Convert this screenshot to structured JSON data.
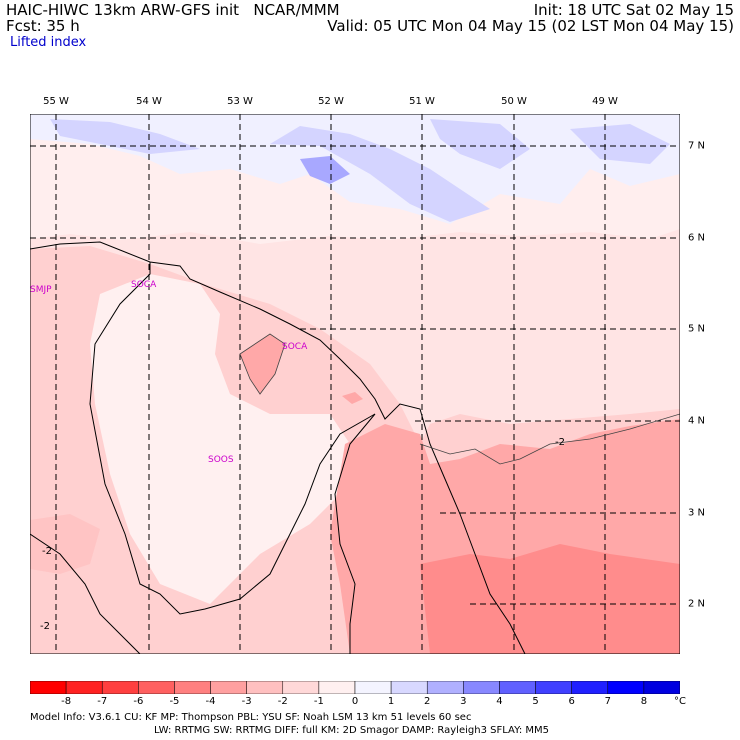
{
  "header": {
    "model": "HAIC-HIWC 13km ARW-GFS init",
    "source": "NCAR/MMM",
    "forecast": "Fcst:    35 h",
    "field": "Lifted index",
    "init": "Init: 18 UTC Sat 02 May 15",
    "valid": "Valid: 05 UTC Mon 04 May 15 (02 LST Mon 04 May 15)"
  },
  "longitude_labels": [
    "55 W",
    "54 W",
    "53 W",
    "52 W",
    "51 W",
    "50 W",
    "49 W"
  ],
  "latitude_labels": [
    "7 N",
    "6 N",
    "5 N",
    "4 N",
    "3 N",
    "2 N"
  ],
  "stations": [
    "SMJP",
    "SOCA",
    "SOCA",
    "SOOS"
  ],
  "contour_labels": [
    "-2",
    "-2",
    "-2"
  ],
  "colorbar": {
    "ticks": [
      "-8",
      "-7",
      "-6",
      "-5",
      "-4",
      "-3",
      "-2",
      "-1",
      "0",
      "1",
      "2",
      "3",
      "4",
      "5",
      "6",
      "7",
      "8"
    ],
    "unit": "°C",
    "colors": [
      "#ff0000",
      "#ff2222",
      "#ff4040",
      "#ff6060",
      "#ff8080",
      "#ffa0a0",
      "#ffc0c0",
      "#ffd8d8",
      "#fff0f0",
      "#f4f4ff",
      "#d8d8ff",
      "#b0b0ff",
      "#8888ff",
      "#6060ff",
      "#4040ff",
      "#2020ff",
      "#0000ff",
      "#0000e0"
    ]
  },
  "footer": {
    "line1": "Model Info: V3.6.1     CU: KF        MP: Thompson      PBL: YSU        SF: Noah LSM      13 km    51 levels    60 sec",
    "line2": "LW: RRTMG     SW: RRTMG   DIFF: full     KM: 2D Smagor DAMP: Rayleigh3   SFLAY: MM5"
  }
}
